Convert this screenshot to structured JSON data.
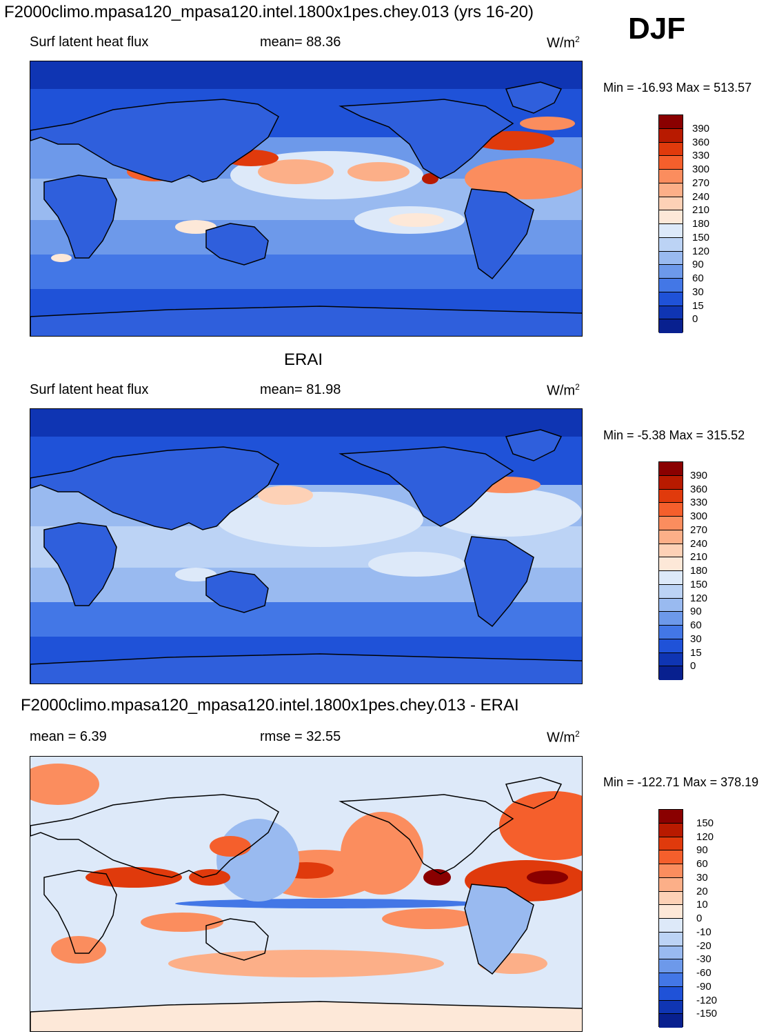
{
  "header": {
    "title": "F2000climo.mpasa120_mpasa120.intel.1800x1pes.chey.013 (yrs 16-20)",
    "season": "DJF"
  },
  "panels": [
    {
      "id": "model",
      "title": "",
      "left_label": "Surf latent heat flux",
      "center_label": "mean=  88.36",
      "units": "W/m",
      "units_sup": "2",
      "minmax": "Min = -16.93 Max = 513.57",
      "levels": [
        "390",
        "360",
        "330",
        "300",
        "270",
        "240",
        "210",
        "180",
        "150",
        "120",
        "90",
        "60",
        "30",
        "15",
        "0"
      ],
      "colors": [
        "#8a0000",
        "#b81a00",
        "#e03a0c",
        "#f55f2c",
        "#fb8d5e",
        "#fcaf88",
        "#fdd1b6",
        "#fde8d8",
        "#dde9f9",
        "#bcd3f5",
        "#99baf0",
        "#6d99ea",
        "#4377e6",
        "#1f52d8",
        "#0f35b3",
        "#08208f"
      ]
    },
    {
      "id": "obs",
      "title": "ERAI",
      "left_label": "Surf latent heat flux",
      "center_label": "mean=  81.98",
      "units": "W/m",
      "units_sup": "2",
      "minmax": "Min =  -5.38 Max = 315.52",
      "levels": [
        "390",
        "360",
        "330",
        "300",
        "270",
        "240",
        "210",
        "180",
        "150",
        "120",
        "90",
        "60",
        "30",
        "15",
        "0"
      ],
      "colors": [
        "#8a0000",
        "#b81a00",
        "#e03a0c",
        "#f55f2c",
        "#fb8d5e",
        "#fcaf88",
        "#fdd1b6",
        "#fde8d8",
        "#dde9f9",
        "#bcd3f5",
        "#99baf0",
        "#6d99ea",
        "#4377e6",
        "#1f52d8",
        "#0f35b3",
        "#08208f"
      ]
    },
    {
      "id": "diff",
      "title": "F2000climo.mpasa120_mpasa120.intel.1800x1pes.chey.013 - ERAI",
      "left_label": "mean =    6.39",
      "center_label": "rmse =  32.55",
      "units": "W/m",
      "units_sup": "2",
      "minmax": "Min = -122.71 Max = 378.19",
      "levels": [
        "150",
        "120",
        "90",
        "60",
        "30",
        "20",
        "10",
        "0",
        "-10",
        "-20",
        "-30",
        "-60",
        "-90",
        "-120",
        "-150"
      ],
      "colors": [
        "#8a0000",
        "#b81a00",
        "#e03a0c",
        "#f55f2c",
        "#fb8d5e",
        "#fcaf88",
        "#fdd1b6",
        "#fde8d8",
        "#dde9f9",
        "#bcd3f5",
        "#99baf0",
        "#6d99ea",
        "#4377e6",
        "#1f52d8",
        "#0f35b3",
        "#08208f"
      ]
    }
  ],
  "chart_data": [
    {
      "type": "heatmap",
      "title": "Surf latent heat flux",
      "mean": 88.36,
      "min": -16.93,
      "max": 513.57,
      "units": "W/m2",
      "contour_levels": [
        0,
        15,
        30,
        60,
        90,
        120,
        150,
        180,
        210,
        240,
        270,
        300,
        330,
        360,
        390
      ]
    },
    {
      "type": "heatmap",
      "title": "ERAI Surf latent heat flux",
      "mean": 81.98,
      "min": -5.38,
      "max": 315.52,
      "units": "W/m2",
      "contour_levels": [
        0,
        15,
        30,
        60,
        90,
        120,
        150,
        180,
        210,
        240,
        270,
        300,
        330,
        360,
        390
      ]
    },
    {
      "type": "heatmap",
      "title": "F2000climo.mpasa120_mpasa120.intel.1800x1pes.chey.013 - ERAI",
      "mean": 6.39,
      "rmse": 32.55,
      "min": -122.71,
      "max": 378.19,
      "units": "W/m2",
      "contour_levels": [
        -150,
        -120,
        -90,
        -60,
        -30,
        -20,
        -10,
        0,
        10,
        20,
        30,
        60,
        90,
        120,
        150
      ]
    }
  ]
}
